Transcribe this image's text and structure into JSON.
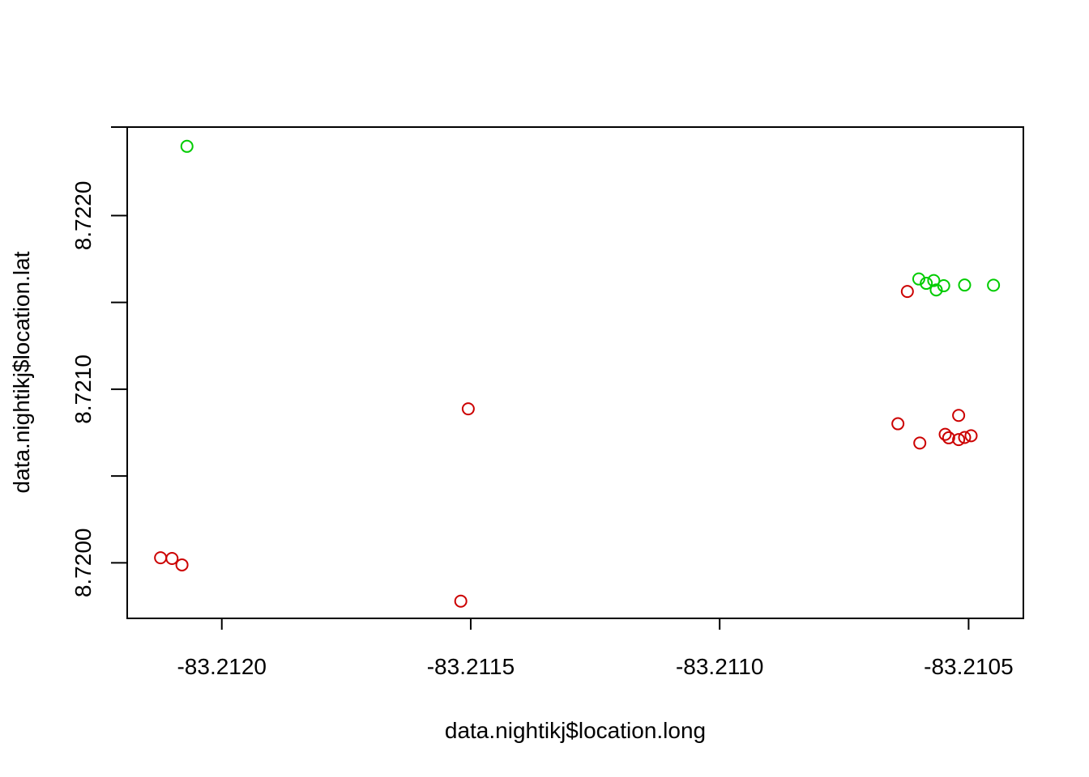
{
  "chart_data": {
    "type": "scatter",
    "title": "",
    "xlabel": "data.nightikj$location.long",
    "ylabel": "data.nightikj$location.lat",
    "xlim": [
      -83.21219,
      -83.21039
    ],
    "ylim": [
      8.71968,
      8.72251
    ],
    "x_ticks": [
      "-83.2120",
      "-83.2115",
      "-83.2110",
      "-83.2105"
    ],
    "x_tick_values": [
      -83.212,
      -83.2115,
      -83.211,
      -83.2105
    ],
    "y_ticks": [
      "8.7200",
      "",
      "8.7210",
      "",
      "8.7220"
    ],
    "y_tick_values": [
      8.72,
      8.7205,
      8.721,
      8.7215,
      8.722
    ],
    "grid": false,
    "legend": "none",
    "marker": "open-circle",
    "series": [
      {
        "color": "#00cc00",
        "points": [
          {
            "x": -83.21207,
            "y": 8.722399
          },
          {
            "x": -83.2106,
            "y": 8.721635
          },
          {
            "x": -83.210585,
            "y": 8.72161
          },
          {
            "x": -83.21057,
            "y": 8.721626
          },
          {
            "x": -83.210565,
            "y": 8.721572
          },
          {
            "x": -83.21055,
            "y": 8.721596
          },
          {
            "x": -83.210508,
            "y": 8.7216
          },
          {
            "x": -83.21045,
            "y": 8.721599
          }
        ]
      },
      {
        "color": "#cc0000",
        "points": [
          {
            "x": -83.210623,
            "y": 8.721563
          },
          {
            "x": -83.211505,
            "y": 8.720887
          },
          {
            "x": -83.210642,
            "y": 8.720801
          },
          {
            "x": -83.21052,
            "y": 8.720849
          },
          {
            "x": -83.210598,
            "y": 8.72069
          },
          {
            "x": -83.210547,
            "y": 8.72074
          },
          {
            "x": -83.21054,
            "y": 8.72072
          },
          {
            "x": -83.21052,
            "y": 8.72071
          },
          {
            "x": -83.210508,
            "y": 8.720722
          },
          {
            "x": -83.210495,
            "y": 8.720732
          },
          {
            "x": -83.212123,
            "y": 8.720029
          },
          {
            "x": -83.2121,
            "y": 8.720025
          },
          {
            "x": -83.21208,
            "y": 8.719988
          },
          {
            "x": -83.21152,
            "y": 8.719779
          }
        ]
      }
    ]
  }
}
